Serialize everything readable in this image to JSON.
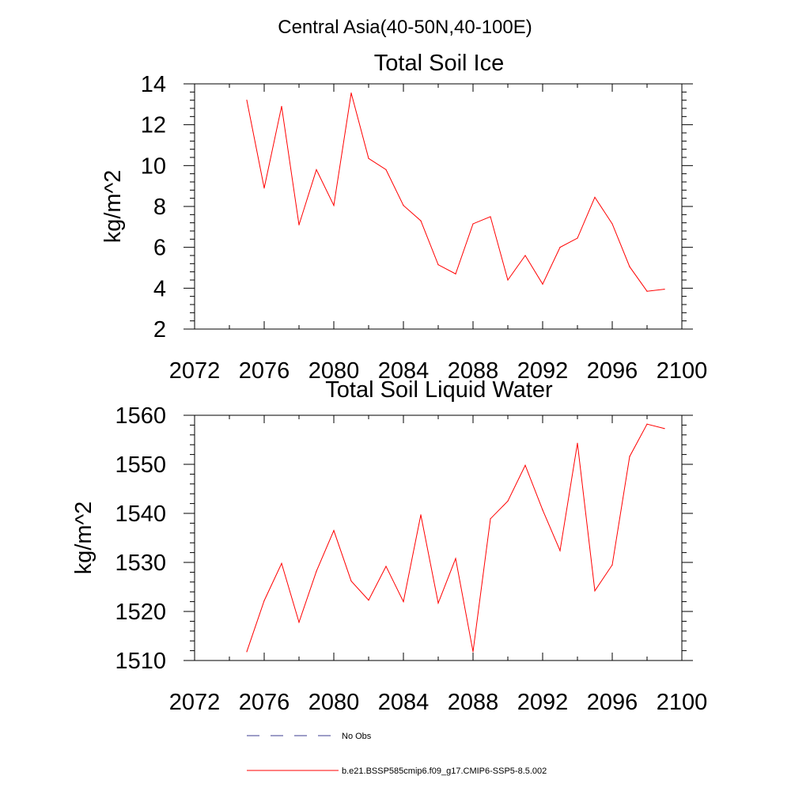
{
  "suptitle": "Central Asia(40-50N,40-100E)",
  "colors": {
    "series": "#ff0000",
    "obs": "#3b3b8f",
    "axis": "#000000"
  },
  "chart_data": [
    {
      "type": "line",
      "title": "Total Soil Ice",
      "ylabel": "kg/m^2",
      "xlabel": "",
      "xlim": [
        2072,
        2100
      ],
      "ylim": [
        2,
        14
      ],
      "xticks": [
        2072,
        2076,
        2080,
        2084,
        2088,
        2092,
        2096,
        2100
      ],
      "xtick_labels": [
        "2072",
        "2076",
        "2080",
        "2084",
        "2088",
        "2092",
        "2096",
        "2100"
      ],
      "yticks": [
        2,
        4,
        6,
        8,
        10,
        12,
        14
      ],
      "ytick_labels": [
        "2",
        "4",
        "6",
        "8",
        "10",
        "12",
        "14"
      ],
      "yminor_step": 0.4,
      "series": [
        {
          "name": "b.e21.BSSP585cmip6.f09_g17.CMIP6-SSP5-8.5.002",
          "x": [
            2075,
            2076,
            2077,
            2078,
            2079,
            2080,
            2081,
            2082,
            2083,
            2084,
            2085,
            2086,
            2087,
            2088,
            2089,
            2090,
            2091,
            2092,
            2093,
            2094,
            2095,
            2096,
            2097,
            2098,
            2099
          ],
          "values": [
            13.2,
            8.9,
            12.9,
            7.1,
            9.8,
            8.05,
            13.55,
            10.35,
            9.8,
            8.05,
            7.3,
            5.15,
            4.7,
            7.15,
            7.5,
            4.4,
            5.6,
            4.2,
            6.0,
            6.45,
            8.45,
            7.15,
            5.05,
            3.85,
            3.95
          ]
        }
      ]
    },
    {
      "type": "line",
      "title": "Total Soil Liquid Water",
      "ylabel": "kg/m^2",
      "xlabel": "",
      "xlim": [
        2072,
        2100
      ],
      "ylim": [
        1510,
        1560
      ],
      "xticks": [
        2072,
        2076,
        2080,
        2084,
        2088,
        2092,
        2096,
        2100
      ],
      "xtick_labels": [
        "2072",
        "2076",
        "2080",
        "2084",
        "2088",
        "2092",
        "2096",
        "2100"
      ],
      "yticks": [
        1510,
        1520,
        1530,
        1540,
        1550,
        1560
      ],
      "ytick_labels": [
        "1510",
        "1520",
        "1530",
        "1540",
        "1550",
        "1560"
      ],
      "yminor_step": 2,
      "series": [
        {
          "name": "b.e21.BSSP585cmip6.f09_g17.CMIP6-SSP5-8.5.002",
          "x": [
            2075,
            2076,
            2077,
            2078,
            2079,
            2080,
            2081,
            2082,
            2083,
            2084,
            2085,
            2086,
            2087,
            2088,
            2089,
            2090,
            2091,
            2092,
            2093,
            2094,
            2095,
            2096,
            2097,
            2098,
            2099
          ],
          "values": [
            1511.8,
            1522.2,
            1529.8,
            1517.8,
            1528.2,
            1536.5,
            1526.2,
            1522.3,
            1529.2,
            1522.0,
            1539.7,
            1521.7,
            1530.8,
            1511.8,
            1538.9,
            1542.5,
            1549.8,
            1540.7,
            1532.4,
            1554.3,
            1524.2,
            1529.5,
            1551.6,
            1558.2,
            1557.3
          ]
        }
      ]
    }
  ],
  "legend": [
    {
      "label": "No Obs",
      "style": "dashed",
      "color": "#3b3b8f"
    },
    {
      "label": "b.e21.BSSP585cmip6.f09_g17.CMIP6-SSP5-8.5.002",
      "style": "solid",
      "color": "#ff0000"
    }
  ]
}
